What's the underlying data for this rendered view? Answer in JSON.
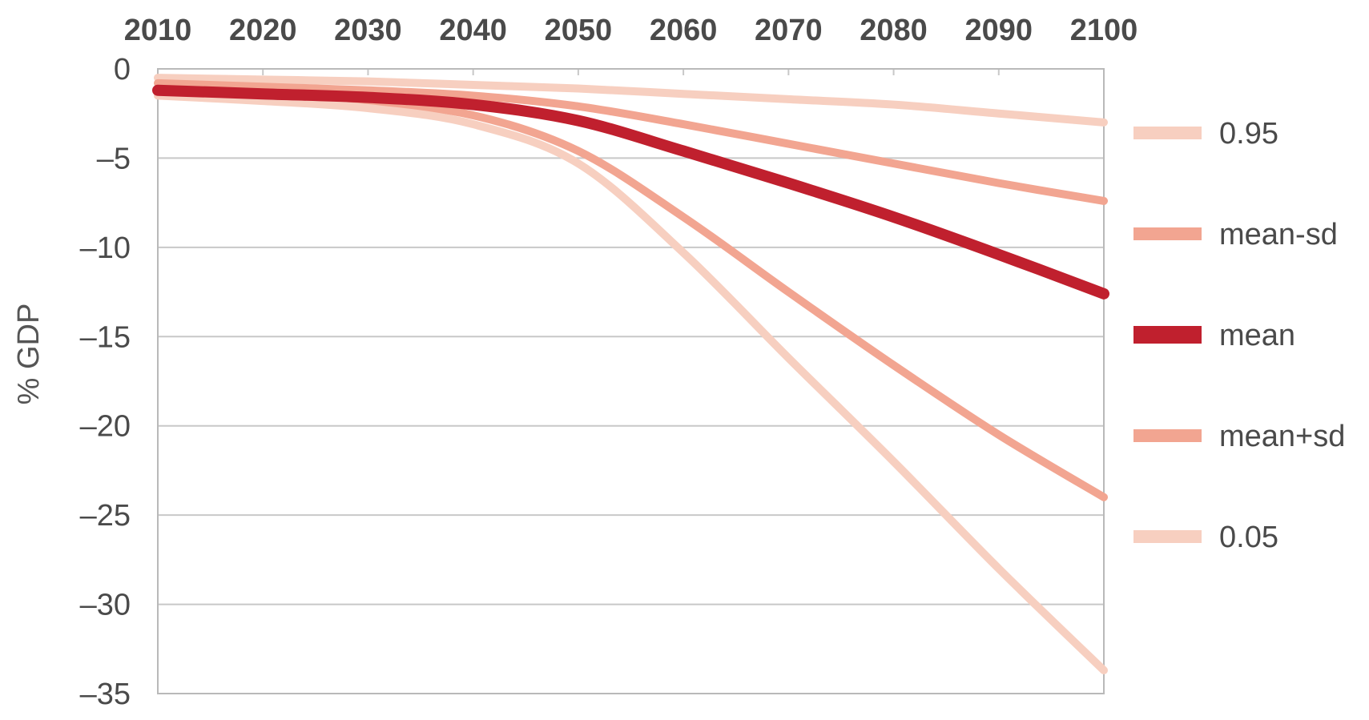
{
  "chart_data": {
    "type": "line",
    "title": "",
    "xlabel": "",
    "ylabel": "% GDP",
    "x": [
      2010,
      2020,
      2030,
      2040,
      2050,
      2060,
      2070,
      2080,
      2090,
      2100
    ],
    "xlim": [
      2010,
      2100
    ],
    "ylim": [
      -35,
      0
    ],
    "x_ticks": [
      "2010",
      "2020",
      "2030",
      "2040",
      "2050",
      "2060",
      "2070",
      "2080",
      "2090",
      "2100"
    ],
    "y_ticks": [
      0,
      -5,
      -10,
      -15,
      -20,
      -25,
      -30,
      -35
    ],
    "y_tick_labels": [
      "0",
      "–5",
      "–10",
      "–15",
      "–20",
      "–25",
      "–30",
      "–35"
    ],
    "x_axis_position": "top",
    "grid": "horizontal",
    "legend_position": "right",
    "series": [
      {
        "name": "0.95",
        "color": "#f7cfc0",
        "width": "thin",
        "values": [
          -0.5,
          -0.6,
          -0.7,
          -0.9,
          -1.1,
          -1.4,
          -1.7,
          -2.0,
          -2.5,
          -3.0
        ]
      },
      {
        "name": "mean-sd",
        "color": "#f2a591",
        "width": "thin",
        "values": [
          -0.8,
          -1.0,
          -1.2,
          -1.5,
          -2.1,
          -3.1,
          -4.2,
          -5.3,
          -6.4,
          -7.4
        ]
      },
      {
        "name": "mean",
        "color": "#c0202e",
        "width": "thick",
        "values": [
          -1.2,
          -1.4,
          -1.6,
          -2.0,
          -2.9,
          -4.6,
          -6.4,
          -8.3,
          -10.4,
          -12.6
        ]
      },
      {
        "name": "mean+sd",
        "color": "#f2a591",
        "width": "thin",
        "values": [
          -1.4,
          -1.6,
          -1.9,
          -2.6,
          -4.6,
          -8.3,
          -12.5,
          -16.6,
          -20.5,
          -24.0
        ]
      },
      {
        "name": "0.05",
        "color": "#f7cfc0",
        "width": "thin",
        "values": [
          -1.5,
          -1.8,
          -2.2,
          -3.1,
          -5.3,
          -10.3,
          -16.2,
          -22.0,
          -28.0,
          -33.7
        ]
      }
    ]
  }
}
